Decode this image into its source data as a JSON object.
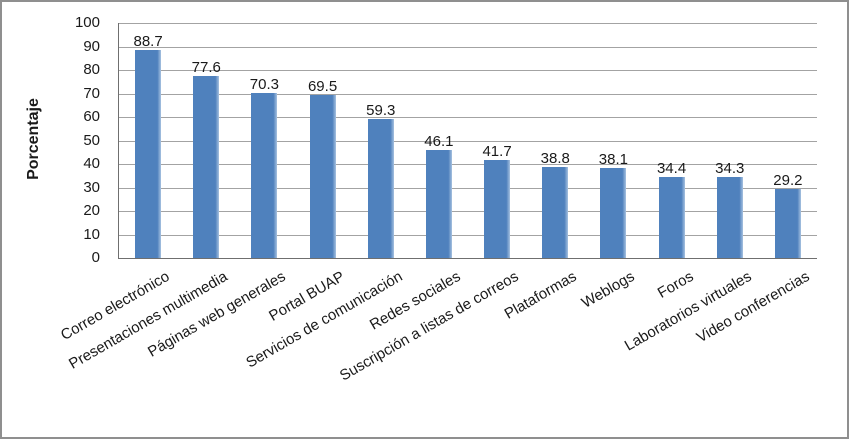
{
  "chart_data": {
    "type": "bar",
    "title": "",
    "categories": [
      "Correo electrónico",
      "Presentaciones multimedia",
      "Páginas web generales",
      "Portal BUAP",
      "Servicios de comunicación",
      "Redes sociales",
      "Suscripción a listas de correos",
      "Plataformas",
      "Weblogs",
      "Foros",
      "Laboratorios virtuales",
      "Video conferencias"
    ],
    "values": [
      88.7,
      77.6,
      70.3,
      69.5,
      59.3,
      46.1,
      41.7,
      38.8,
      38.1,
      34.4,
      34.3,
      29.2
    ],
    "xlabel": "",
    "ylabel": "Porcentaje",
    "ylim": [
      0,
      100
    ],
    "yticks": [
      0,
      10,
      20,
      30,
      40,
      50,
      60,
      70,
      80,
      90,
      100
    ],
    "grid": true,
    "legend": false,
    "data_labels": true,
    "colors": {
      "bar": "#4F81BD",
      "bar_edge_highlight": "#A7C2E0",
      "gridline": "#A3A3A3",
      "axis": "#6f6f6f",
      "text": "#1a1a1a"
    }
  }
}
